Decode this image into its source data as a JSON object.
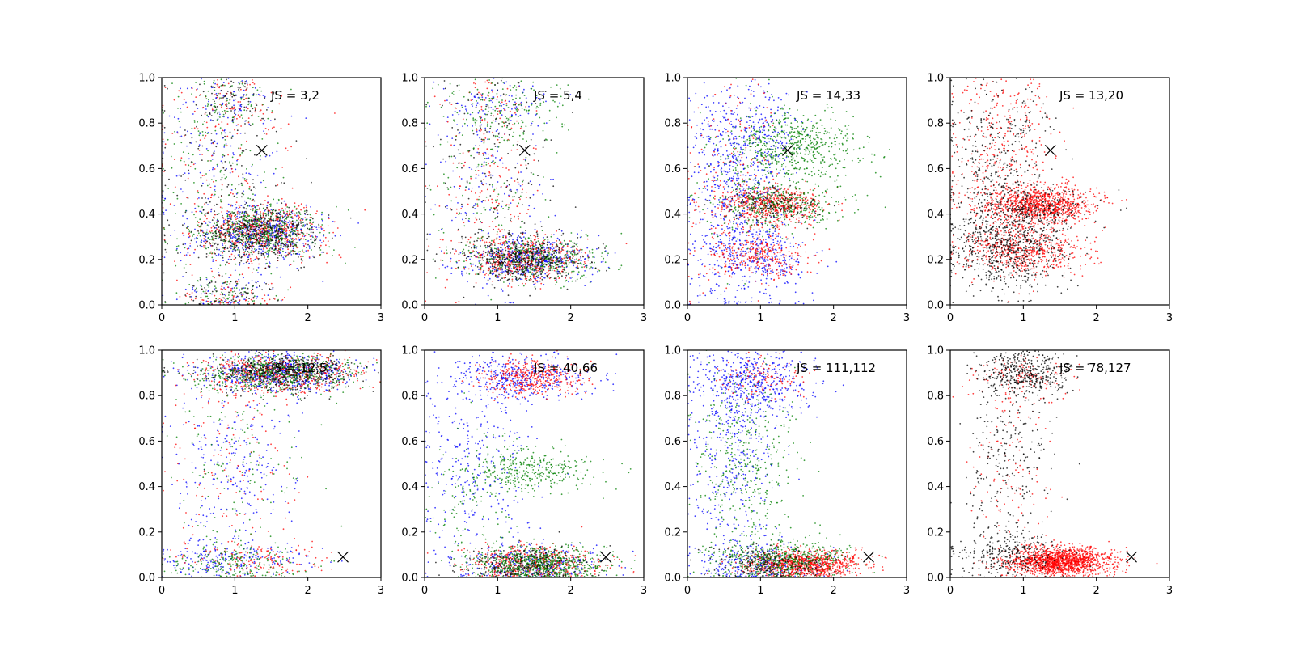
{
  "chart_data": [
    {
      "type": "scatter",
      "title": "JS = 3,2",
      "xlabel": "",
      "ylabel": "",
      "xlim": [
        0,
        3
      ],
      "ylim": [
        0,
        1
      ],
      "xticks": [
        "0",
        "1",
        "2",
        "3"
      ],
      "yticks": [
        "0.0",
        "0.2",
        "0.4",
        "0.6",
        "0.8",
        "1.0"
      ],
      "grid": false,
      "marker": {
        "x": 1.37,
        "y": 0.68,
        "symbol": "x"
      },
      "series": [
        {
          "color": "#0000ff",
          "clusters": [
            {
              "x": 1.35,
              "y": 0.32,
              "sx": 0.42,
              "sy": 0.06,
              "n": 520
            },
            {
              "x": 0.95,
              "y": 0.9,
              "sx": 0.3,
              "sy": 0.08,
              "n": 90
            },
            {
              "x": 0.8,
              "y": 0.55,
              "sx": 0.5,
              "sy": 0.25,
              "n": 160
            },
            {
              "x": 0.9,
              "y": 0.05,
              "sx": 0.35,
              "sy": 0.04,
              "n": 70
            }
          ]
        },
        {
          "color": "#ff0000",
          "clusters": [
            {
              "x": 1.35,
              "y": 0.32,
              "sx": 0.42,
              "sy": 0.06,
              "n": 500
            },
            {
              "x": 0.95,
              "y": 0.9,
              "sx": 0.3,
              "sy": 0.08,
              "n": 90
            },
            {
              "x": 0.8,
              "y": 0.55,
              "sx": 0.5,
              "sy": 0.25,
              "n": 150
            },
            {
              "x": 0.9,
              "y": 0.05,
              "sx": 0.35,
              "sy": 0.04,
              "n": 70
            }
          ]
        },
        {
          "color": "#008000",
          "clusters": [
            {
              "x": 1.35,
              "y": 0.32,
              "sx": 0.42,
              "sy": 0.06,
              "n": 520
            },
            {
              "x": 0.95,
              "y": 0.9,
              "sx": 0.3,
              "sy": 0.08,
              "n": 90
            },
            {
              "x": 0.8,
              "y": 0.55,
              "sx": 0.5,
              "sy": 0.25,
              "n": 160
            },
            {
              "x": 0.9,
              "y": 0.05,
              "sx": 0.35,
              "sy": 0.04,
              "n": 70
            }
          ]
        },
        {
          "color": "#000000",
          "clusters": [
            {
              "x": 1.35,
              "y": 0.32,
              "sx": 0.42,
              "sy": 0.06,
              "n": 480
            },
            {
              "x": 0.95,
              "y": 0.9,
              "sx": 0.3,
              "sy": 0.08,
              "n": 90
            },
            {
              "x": 0.8,
              "y": 0.55,
              "sx": 0.5,
              "sy": 0.25,
              "n": 150
            },
            {
              "x": 0.9,
              "y": 0.05,
              "sx": 0.35,
              "sy": 0.04,
              "n": 70
            }
          ]
        }
      ]
    },
    {
      "type": "scatter",
      "title": "JS = 5,4",
      "xlabel": "",
      "ylabel": "",
      "xlim": [
        0,
        3
      ],
      "ylim": [
        0,
        1
      ],
      "xticks": [
        "0",
        "1",
        "2",
        "3"
      ],
      "yticks": [
        "0.0",
        "0.2",
        "0.4",
        "0.6",
        "0.8",
        "1.0"
      ],
      "grid": false,
      "marker": {
        "x": 1.37,
        "y": 0.68,
        "symbol": "x"
      },
      "series": [
        {
          "color": "#0000ff",
          "clusters": [
            {
              "x": 1.4,
              "y": 0.2,
              "sx": 0.42,
              "sy": 0.05,
              "n": 480
            },
            {
              "x": 0.85,
              "y": 0.6,
              "sx": 0.45,
              "sy": 0.25,
              "n": 200
            },
            {
              "x": 1.0,
              "y": 0.9,
              "sx": 0.4,
              "sy": 0.06,
              "n": 60
            }
          ]
        },
        {
          "color": "#ff0000",
          "clusters": [
            {
              "x": 1.35,
              "y": 0.2,
              "sx": 0.4,
              "sy": 0.05,
              "n": 480
            },
            {
              "x": 0.9,
              "y": 0.5,
              "sx": 0.35,
              "sy": 0.2,
              "n": 180
            },
            {
              "x": 1.0,
              "y": 0.9,
              "sx": 0.35,
              "sy": 0.06,
              "n": 50
            }
          ]
        },
        {
          "color": "#008000",
          "clusters": [
            {
              "x": 1.5,
              "y": 0.2,
              "sx": 0.45,
              "sy": 0.05,
              "n": 420
            },
            {
              "x": 1.1,
              "y": 0.85,
              "sx": 0.45,
              "sy": 0.08,
              "n": 180
            },
            {
              "x": 0.8,
              "y": 0.55,
              "sx": 0.4,
              "sy": 0.2,
              "n": 120
            }
          ]
        },
        {
          "color": "#000000",
          "clusters": [
            {
              "x": 1.35,
              "y": 0.2,
              "sx": 0.4,
              "sy": 0.05,
              "n": 420
            },
            {
              "x": 0.85,
              "y": 0.6,
              "sx": 0.45,
              "sy": 0.25,
              "n": 180
            }
          ]
        }
      ]
    },
    {
      "type": "scatter",
      "title": "JS = 14,33",
      "xlabel": "",
      "ylabel": "",
      "xlim": [
        0,
        3
      ],
      "ylim": [
        0,
        1
      ],
      "xticks": [
        "0",
        "1",
        "2",
        "3"
      ],
      "yticks": [
        "0.0",
        "0.2",
        "0.4",
        "0.6",
        "0.8",
        "1.0"
      ],
      "grid": false,
      "marker": {
        "x": 1.37,
        "y": 0.68,
        "symbol": "x"
      },
      "series": [
        {
          "color": "#0000ff",
          "clusters": [
            {
              "x": 0.7,
              "y": 0.45,
              "sx": 0.35,
              "sy": 0.28,
              "n": 650
            },
            {
              "x": 1.0,
              "y": 0.2,
              "sx": 0.4,
              "sy": 0.06,
              "n": 250
            },
            {
              "x": 0.9,
              "y": 0.75,
              "sx": 0.35,
              "sy": 0.1,
              "n": 200
            }
          ]
        },
        {
          "color": "#ff0000",
          "clusters": [
            {
              "x": 1.2,
              "y": 0.44,
              "sx": 0.35,
              "sy": 0.04,
              "n": 500
            },
            {
              "x": 1.0,
              "y": 0.22,
              "sx": 0.35,
              "sy": 0.05,
              "n": 300
            },
            {
              "x": 0.6,
              "y": 0.6,
              "sx": 0.35,
              "sy": 0.25,
              "n": 200
            }
          ]
        },
        {
          "color": "#008000",
          "clusters": [
            {
              "x": 1.45,
              "y": 0.7,
              "sx": 0.45,
              "sy": 0.07,
              "n": 550
            },
            {
              "x": 1.3,
              "y": 0.44,
              "sx": 0.45,
              "sy": 0.05,
              "n": 350
            },
            {
              "x": 0.8,
              "y": 0.55,
              "sx": 0.35,
              "sy": 0.2,
              "n": 120
            }
          ]
        },
        {
          "color": "#000000",
          "clusters": [
            {
              "x": 1.2,
              "y": 0.44,
              "sx": 0.35,
              "sy": 0.04,
              "n": 150
            }
          ]
        }
      ]
    },
    {
      "type": "scatter",
      "title": "JS = 13,20",
      "xlabel": "",
      "ylabel": "",
      "xlim": [
        0,
        3
      ],
      "ylim": [
        0,
        1
      ],
      "xticks": [
        "0",
        "1",
        "2",
        "3"
      ],
      "yticks": [
        "0.0",
        "0.2",
        "0.4",
        "0.6",
        "0.8",
        "1.0"
      ],
      "grid": false,
      "marker": {
        "x": 1.37,
        "y": 0.68,
        "symbol": "x"
      },
      "series": [
        {
          "color": "#ff0000",
          "clusters": [
            {
              "x": 1.25,
              "y": 0.44,
              "sx": 0.35,
              "sy": 0.04,
              "n": 950
            },
            {
              "x": 1.05,
              "y": 0.24,
              "sx": 0.4,
              "sy": 0.05,
              "n": 550
            },
            {
              "x": 0.7,
              "y": 0.65,
              "sx": 0.35,
              "sy": 0.25,
              "n": 450
            }
          ]
        },
        {
          "color": "#000000",
          "clusters": [
            {
              "x": 0.8,
              "y": 0.25,
              "sx": 0.4,
              "sy": 0.09,
              "n": 650
            },
            {
              "x": 0.65,
              "y": 0.6,
              "sx": 0.35,
              "sy": 0.25,
              "n": 450
            },
            {
              "x": 1.1,
              "y": 0.43,
              "sx": 0.4,
              "sy": 0.05,
              "n": 200
            }
          ]
        }
      ]
    },
    {
      "type": "scatter",
      "title": "JS = 12,5",
      "xlabel": "",
      "ylabel": "",
      "xlim": [
        0,
        3
      ],
      "ylim": [
        0,
        1
      ],
      "xticks": [
        "0",
        "1",
        "2",
        "3"
      ],
      "yticks": [
        "0.0",
        "0.2",
        "0.4",
        "0.6",
        "0.8",
        "1.0"
      ],
      "grid": false,
      "marker": {
        "x": 2.48,
        "y": 0.09,
        "symbol": "x"
      },
      "series": [
        {
          "color": "#0000ff",
          "clusters": [
            {
              "x": 1.6,
              "y": 0.9,
              "sx": 0.55,
              "sy": 0.04,
              "n": 600
            },
            {
              "x": 0.9,
              "y": 0.08,
              "sx": 0.5,
              "sy": 0.04,
              "n": 200
            },
            {
              "x": 0.9,
              "y": 0.5,
              "sx": 0.45,
              "sy": 0.22,
              "n": 250
            }
          ]
        },
        {
          "color": "#ff0000",
          "clusters": [
            {
              "x": 1.6,
              "y": 0.9,
              "sx": 0.55,
              "sy": 0.04,
              "n": 550
            },
            {
              "x": 1.3,
              "y": 0.08,
              "sx": 0.45,
              "sy": 0.04,
              "n": 150
            },
            {
              "x": 1.0,
              "y": 0.55,
              "sx": 0.45,
              "sy": 0.22,
              "n": 150
            }
          ]
        },
        {
          "color": "#008000",
          "clusters": [
            {
              "x": 1.6,
              "y": 0.9,
              "sx": 0.55,
              "sy": 0.04,
              "n": 600
            },
            {
              "x": 1.0,
              "y": 0.06,
              "sx": 0.45,
              "sy": 0.04,
              "n": 200
            },
            {
              "x": 1.0,
              "y": 0.5,
              "sx": 0.45,
              "sy": 0.22,
              "n": 150
            }
          ]
        },
        {
          "color": "#000000",
          "clusters": [
            {
              "x": 1.6,
              "y": 0.9,
              "sx": 0.55,
              "sy": 0.04,
              "n": 450
            }
          ]
        }
      ]
    },
    {
      "type": "scatter",
      "title": "JS = 40,66",
      "xlabel": "",
      "ylabel": "",
      "xlim": [
        0,
        3
      ],
      "ylim": [
        0,
        1
      ],
      "xticks": [
        "0",
        "1",
        "2",
        "3"
      ],
      "yticks": [
        "0.0",
        "0.2",
        "0.4",
        "0.6",
        "0.8",
        "1.0"
      ],
      "grid": false,
      "marker": {
        "x": 2.48,
        "y": 0.09,
        "symbol": "x"
      },
      "series": [
        {
          "color": "#0000ff",
          "clusters": [
            {
              "x": 1.3,
              "y": 0.88,
              "sx": 0.45,
              "sy": 0.05,
              "n": 400
            },
            {
              "x": 0.7,
              "y": 0.5,
              "sx": 0.4,
              "sy": 0.25,
              "n": 350
            },
            {
              "x": 1.5,
              "y": 0.06,
              "sx": 0.45,
              "sy": 0.04,
              "n": 300
            }
          ]
        },
        {
          "color": "#ff0000",
          "clusters": [
            {
              "x": 1.45,
              "y": 0.88,
              "sx": 0.35,
              "sy": 0.04,
              "n": 400
            },
            {
              "x": 1.5,
              "y": 0.06,
              "sx": 0.45,
              "sy": 0.04,
              "n": 450
            }
          ]
        },
        {
          "color": "#008000",
          "clusters": [
            {
              "x": 1.45,
              "y": 0.47,
              "sx": 0.45,
              "sy": 0.05,
              "n": 350
            },
            {
              "x": 1.55,
              "y": 0.06,
              "sx": 0.45,
              "sy": 0.04,
              "n": 700
            },
            {
              "x": 0.6,
              "y": 0.35,
              "sx": 0.3,
              "sy": 0.15,
              "n": 100
            }
          ]
        },
        {
          "color": "#000000",
          "clusters": [
            {
              "x": 1.4,
              "y": 0.06,
              "sx": 0.45,
              "sy": 0.04,
              "n": 250
            }
          ]
        }
      ]
    },
    {
      "type": "scatter",
      "title": "JS = 111,112",
      "xlabel": "",
      "ylabel": "",
      "xlim": [
        0,
        3
      ],
      "ylim": [
        0,
        1
      ],
      "xticks": [
        "0",
        "1",
        "2",
        "3"
      ],
      "yticks": [
        "0.0",
        "0.2",
        "0.4",
        "0.6",
        "0.8",
        "1.0"
      ],
      "grid": false,
      "marker": {
        "x": 2.48,
        "y": 0.09,
        "symbol": "x"
      },
      "series": [
        {
          "color": "#0000ff",
          "clusters": [
            {
              "x": 0.9,
              "y": 0.85,
              "sx": 0.4,
              "sy": 0.08,
              "n": 500
            },
            {
              "x": 0.6,
              "y": 0.5,
              "sx": 0.3,
              "sy": 0.25,
              "n": 350
            },
            {
              "x": 1.0,
              "y": 0.06,
              "sx": 0.4,
              "sy": 0.04,
              "n": 300
            }
          ]
        },
        {
          "color": "#ff0000",
          "clusters": [
            {
              "x": 1.6,
              "y": 0.06,
              "sx": 0.4,
              "sy": 0.03,
              "n": 900
            },
            {
              "x": 1.0,
              "y": 0.88,
              "sx": 0.3,
              "sy": 0.05,
              "n": 120
            }
          ]
        },
        {
          "color": "#008000",
          "clusters": [
            {
              "x": 0.8,
              "y": 0.45,
              "sx": 0.35,
              "sy": 0.25,
              "n": 450
            },
            {
              "x": 1.3,
              "y": 0.08,
              "sx": 0.45,
              "sy": 0.04,
              "n": 500
            }
          ]
        },
        {
          "color": "#000000",
          "clusters": [
            {
              "x": 1.2,
              "y": 0.06,
              "sx": 0.4,
              "sy": 0.04,
              "n": 200
            }
          ]
        }
      ]
    },
    {
      "type": "scatter",
      "title": "JS = 78,127",
      "xlabel": "",
      "ylabel": "",
      "xlim": [
        0,
        3
      ],
      "ylim": [
        0,
        1
      ],
      "xticks": [
        "0",
        "1",
        "2",
        "3"
      ],
      "yticks": [
        "0.0",
        "0.2",
        "0.4",
        "0.6",
        "0.8",
        "1.0"
      ],
      "grid": false,
      "marker": {
        "x": 2.48,
        "y": 0.09,
        "symbol": "x"
      },
      "series": [
        {
          "color": "#ff0000",
          "clusters": [
            {
              "x": 1.5,
              "y": 0.07,
              "sx": 0.35,
              "sy": 0.03,
              "n": 1500
            },
            {
              "x": 1.0,
              "y": 0.88,
              "sx": 0.3,
              "sy": 0.05,
              "n": 120
            },
            {
              "x": 0.8,
              "y": 0.45,
              "sx": 0.3,
              "sy": 0.25,
              "n": 120
            }
          ]
        },
        {
          "color": "#000000",
          "clusters": [
            {
              "x": 1.0,
              "y": 0.9,
              "sx": 0.3,
              "sy": 0.05,
              "n": 420
            },
            {
              "x": 0.8,
              "y": 0.5,
              "sx": 0.3,
              "sy": 0.25,
              "n": 280
            },
            {
              "x": 0.8,
              "y": 0.1,
              "sx": 0.4,
              "sy": 0.05,
              "n": 280
            }
          ]
        }
      ]
    }
  ]
}
